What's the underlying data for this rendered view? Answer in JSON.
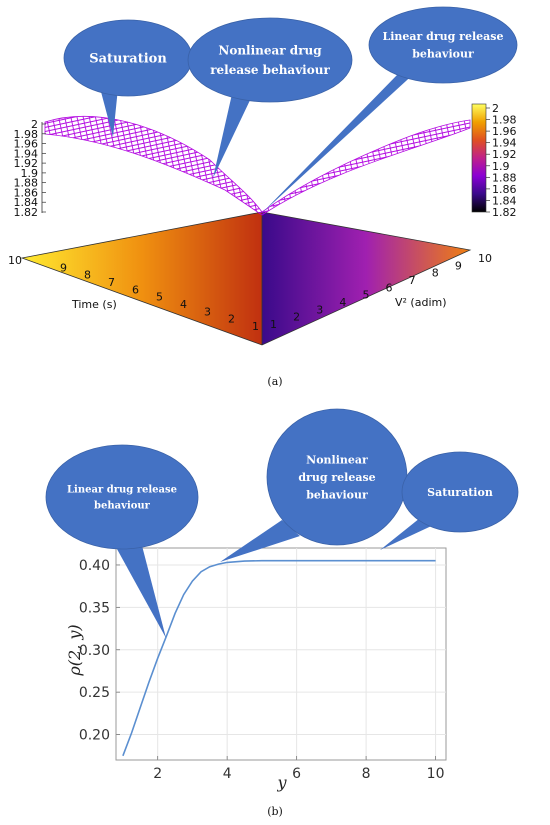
{
  "panel_a": {
    "label": "(a)",
    "callouts": [
      {
        "id": "saturation",
        "lines": [
          "Saturation"
        ]
      },
      {
        "id": "nonlinear",
        "lines": [
          "Nonlinear drug",
          "release behaviour"
        ]
      },
      {
        "id": "linear",
        "lines": [
          "Linear drug release",
          "behaviour"
        ]
      }
    ],
    "colors": {
      "mesh": "#b000e0",
      "callout_fill": "#4472c4",
      "colorbar_stops": [
        "#000000",
        "#3a0a8a",
        "#8a00d4",
        "#c0208a",
        "#e05020",
        "#f0a000",
        "#ffff60"
      ]
    }
  },
  "panel_b": {
    "label": "(b)",
    "callouts": [
      {
        "id": "linear",
        "lines": [
          "Linear drug release",
          "behaviour"
        ]
      },
      {
        "id": "nonlinear",
        "lines": [
          "Nonlinear",
          "drug release",
          "behaviour"
        ]
      },
      {
        "id": "saturation",
        "lines": [
          "Saturation"
        ]
      }
    ],
    "colors": {
      "line": "#5b8fd0",
      "callout_fill": "#4472c4",
      "grid": "#e6e6e6",
      "frame": "#9a9a9a"
    }
  },
  "chart_data": [
    {
      "type": "surface3d",
      "xlabel": "Time (s)",
      "ylabel": "V² (adim)",
      "x_ticks": [
        "1",
        "2",
        "3",
        "4",
        "5",
        "6",
        "7",
        "8",
        "9",
        "10"
      ],
      "y_ticks": [
        "1",
        "2",
        "3",
        "4",
        "5",
        "6",
        "7",
        "8",
        "9",
        "10"
      ],
      "z_ticks": [
        "1.82",
        "1.84",
        "1.86",
        "1.88",
        "1.9",
        "1.92",
        "1.94",
        "1.96",
        "1.98",
        "2"
      ],
      "zlim": [
        1.82,
        2.0
      ],
      "colorbar_ticks": [
        "2",
        "1.98",
        "1.96",
        "1.94",
        "1.92",
        "1.9",
        "1.88",
        "1.86",
        "1.84",
        "1.82"
      ],
      "grid": false
    },
    {
      "type": "line",
      "xlabel": "y",
      "ylabel": "ρ(2, y)",
      "xlim": [
        0.8,
        10.3
      ],
      "ylim": [
        0.17,
        0.42
      ],
      "x_ticks": [
        2,
        4,
        6,
        8,
        10
      ],
      "y_ticks": [
        0.2,
        0.25,
        0.3,
        0.35,
        0.4
      ],
      "y_tick_labels": [
        "0.20",
        "0.25",
        "0.30",
        "0.35",
        "0.40"
      ],
      "grid": true,
      "series": [
        {
          "x": [
            1.0,
            1.25,
            1.5,
            1.75,
            2.0,
            2.25,
            2.5,
            2.75,
            3.0,
            3.25,
            3.5,
            3.75,
            4.0,
            4.5,
            5.0,
            6.0,
            7.0,
            8.0,
            9.0,
            10.0
          ],
          "y": [
            0.175,
            0.202,
            0.232,
            0.262,
            0.29,
            0.316,
            0.343,
            0.365,
            0.381,
            0.392,
            0.398,
            0.401,
            0.403,
            0.4045,
            0.405,
            0.405,
            0.405,
            0.405,
            0.405,
            0.405
          ]
        }
      ]
    }
  ]
}
